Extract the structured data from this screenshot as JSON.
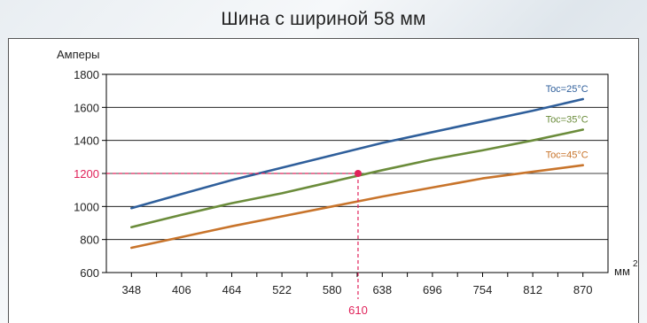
{
  "title": "Шина с шириной 58 мм",
  "chart_data": {
    "type": "line",
    "title": "Шина с шириной 58 мм",
    "ylabel": "Амперы",
    "xlabel": "мм",
    "xlabel_superscript": "2",
    "x_ticks": [
      348,
      406,
      464,
      522,
      580,
      638,
      696,
      754,
      812,
      870
    ],
    "y_ticks": [
      600,
      800,
      1000,
      1200,
      1400,
      1600,
      1800
    ],
    "xlim": [
      319,
      899
    ],
    "ylim": [
      600,
      1800
    ],
    "grid": true,
    "legend": "inline labels at right end of each line",
    "series": [
      {
        "name": "Toc=25°C",
        "color": "#2f5f9b",
        "x": [
          348,
          406,
          464,
          522,
          580,
          638,
          696,
          754,
          812,
          870
        ],
        "values": [
          990,
          1075,
          1160,
          1235,
          1310,
          1385,
          1450,
          1515,
          1580,
          1650
        ]
      },
      {
        "name": "Toc=35°C",
        "color": "#6b8c3b",
        "x": [
          348,
          406,
          464,
          522,
          580,
          638,
          696,
          754,
          812,
          870
        ],
        "values": [
          875,
          950,
          1020,
          1080,
          1150,
          1220,
          1285,
          1340,
          1400,
          1465
        ]
      },
      {
        "name": "Toc=45°C",
        "color": "#c8742b",
        "x": [
          348,
          406,
          464,
          522,
          580,
          638,
          696,
          754,
          812,
          870
        ],
        "values": [
          750,
          815,
          880,
          940,
          1000,
          1060,
          1115,
          1170,
          1210,
          1250
        ]
      }
    ],
    "annotation": {
      "x": 610,
      "y": 1200,
      "x_label": "610",
      "y_label": "1200",
      "color": "#e0225a"
    }
  }
}
